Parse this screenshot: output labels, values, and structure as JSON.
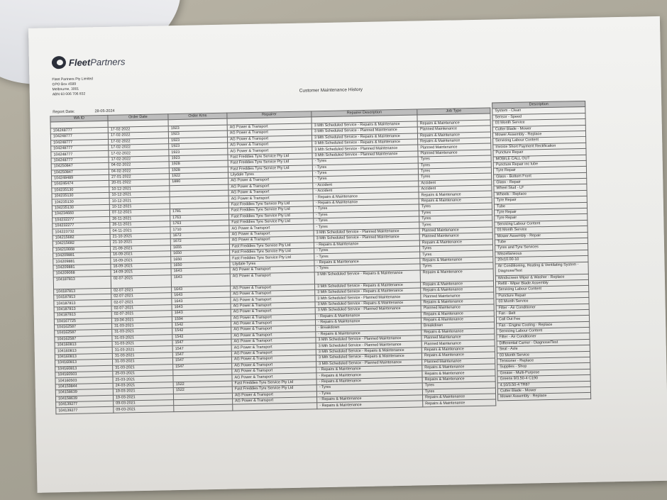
{
  "company": {
    "logo_text": "FleetPartners",
    "address_lines": [
      "Fleet Partners Pty Limited",
      "GPO Box 4599",
      "Melbourne, 3001",
      "ABN 63 006 706 832"
    ]
  },
  "document": {
    "title": "Customer Maintenance History",
    "report_date_label": "Report Date:",
    "report_date": "28-05-2024"
  },
  "table": {
    "headers": [
      "WA ID",
      "Order Date",
      "Order Kms",
      "Repairer",
      "Repairer Description",
      "Job Type",
      "Description"
    ],
    "rows": [
      [
        "",
        "",
        "",
        "",
        "",
        ""
      ],
      [
        "104248777",
        "17-02-2022",
        "1923",
        "AG Power & Transport",
        "3 Mth Scheduled Service - Repairs & Maintenance",
        "Repairs & Maintenance"
      ],
      [
        "104248777",
        "17-02-2022",
        "1923",
        "AG Power & Transport",
        "3 Mth Scheduled Service - Planned Maintenance",
        "Planned Maintenance"
      ],
      [
        "104248777",
        "17-02-2022",
        "1923",
        "AG Power & Transport",
        "3 Mth Scheduled Service - Repairs & Maintenance",
        "Repairs & Maintenance"
      ],
      [
        "104248777",
        "17-02-2022",
        "1923",
        "AG Power & Transport",
        "3 Mth Scheduled Service - Repairs & Maintenance",
        "Repairs & Maintenance"
      ],
      [
        "104248777",
        "17-02-2022",
        "1923",
        "AG Power & Transport",
        "3 Mth Scheduled Service - Planned Maintenance",
        "Planned Maintenance"
      ],
      [
        "104248777",
        "17-02-2022",
        "1923",
        "Fast Freddies Tyre Service Pty Ltd",
        "3 Mth Scheduled Service - Planned Maintenance",
        "Planned Maintenance"
      ],
      [
        "104250847",
        "04-02-2022",
        "1928",
        "Fast Freddies Tyre Service Pty Ltd",
        "- Tyres",
        "Tyres"
      ],
      [
        "104250847",
        "04-02-2022",
        "1928",
        "Fast Freddies Tyre Service Pty Ltd",
        "- Tyres",
        "Tyres"
      ],
      [
        "104248489",
        "27-01-2022",
        "1922",
        "Lilydale Tyres",
        "- Tyres",
        "Tyres"
      ],
      [
        "104246474",
        "20-01-2022",
        "1880",
        "AG Power & Transport",
        "- Tyres",
        "Tyres"
      ],
      [
        "104235130",
        "10-12-2021",
        "",
        "AG Power & Transport",
        "- Accident",
        "Accident"
      ],
      [
        "104235130",
        "10-12-2021",
        "",
        "AG Power & Transport",
        "- Accident",
        "Accident"
      ],
      [
        "104235130",
        "10-12-2021",
        "",
        "AG Power & Transport",
        "- Repairs & Maintenance",
        "Repairs & Maintenance"
      ],
      [
        "104235130",
        "10-12-2021",
        "",
        "Fast Freddies Tyre Service Pty Ltd",
        "- Repairs & Maintenance",
        "Repairs & Maintenance"
      ],
      [
        "104234660",
        "07-12-2021",
        "1781",
        "Fast Freddies Tyre Service Pty Ltd",
        "- Tyres",
        "Tyres"
      ],
      [
        "104232277",
        "26-11-2021",
        "1763",
        "Fast Freddies Tyre Service Pty Ltd",
        "- Tyres",
        "Tyres"
      ],
      [
        "104232277",
        "26-11-2021",
        "1763",
        "Fast Freddies Tyre Service Pty Ltd",
        "- Tyres",
        "Tyres"
      ],
      [
        "104223732",
        "04-11-2021",
        "1710",
        "AG Power & Transport",
        "- Tyres",
        "Tyres"
      ],
      [
        "104215682",
        "21-10-2021",
        "1672",
        "AG Power & Transport",
        "3 Mth Scheduled Service - Planned Maintenance",
        "Planned Maintenance"
      ],
      [
        "104215682",
        "21-10-2021",
        "1672",
        "AG Power & Transport",
        "3 Mth Scheduled Service - Planned Maintenance",
        "Planned Maintenance"
      ],
      [
        "104210668",
        "21-09-2021",
        "1655",
        "Fast Freddies Tyre Service Pty Ltd",
        "- Repairs & Maintenance",
        "Repairs & Maintenance"
      ],
      [
        "104209881",
        "16-09-2021",
        "1650",
        "Fast Freddies Tyre Service Pty Ltd",
        "- Tyres",
        "Tyres"
      ],
      [
        "104209881",
        "16-09-2021",
        "1650",
        "Fast Freddies Tyre Service Pty Ltd",
        "- Tyres",
        "Tyres"
      ],
      [
        "104209881",
        "16-09-2021",
        "1650",
        "Lilydale Tyres",
        "- Repairs & Maintenance",
        "Repairs & Maintenance"
      ],
      [
        "104209068",
        "14-09-2021",
        "1643",
        "AG Power & Transport",
        "- Tyres",
        "Tyres"
      ],
      [
        "104187813",
        "02-07-2021",
        "1643",
        "AG Power & Transport",
        "3 Mth Scheduled Service - Repairs & Maintenance",
        "Repairs & Maintenance"
      ],
      [
        "104187813",
        "02-07-2021",
        "1643",
        "AG Power & Transport",
        "3 Mth Scheduled Service - Repairs & Maintenance",
        "Repairs & Maintenance"
      ],
      [
        "104187813",
        "02-07-2021",
        "1643",
        "AG Power & Transport",
        "3 Mth Scheduled Service - Repairs & Maintenance",
        "Repairs & Maintenance"
      ],
      [
        "104187813",
        "02-07-2021",
        "1643",
        "AG Power & Transport",
        "3 Mth Scheduled Service - Planned Maintenance",
        "Planned Maintenance"
      ],
      [
        "104187813",
        "02-07-2021",
        "1643",
        "AG Power & Transport",
        "3 Mth Scheduled Service - Repairs & Maintenance",
        "Repairs & Maintenance"
      ],
      [
        "104187813",
        "02-07-2021",
        "1643",
        "AG Power & Transport",
        "3 Mth Scheduled Service - Planned Maintenance",
        "Planned Maintenance"
      ],
      [
        "104167725",
        "19-04-2021",
        "1594",
        "AG Power & Transport",
        "- Repairs & Maintenance",
        "Repairs & Maintenance"
      ],
      [
        "104162587",
        "31-03-2021",
        "1542",
        "AG Power & Transport",
        "- Repairs & Maintenance",
        "Repairs & Maintenance"
      ],
      [
        "104162587",
        "31-03-2021",
        "1542",
        "AG Power & Transport",
        "- Breakdown",
        "Breakdown"
      ],
      [
        "104162587",
        "31-03-2021",
        "1542",
        "AG Power & Transport",
        "- Repairs & Maintenance",
        "Repairs & Maintenance"
      ],
      [
        "104160813",
        "31-03-2021",
        "1547",
        "AG Power & Transport",
        "3 Mth Scheduled Service - Planned Maintenance",
        "Planned Maintenance"
      ],
      [
        "104160813",
        "31-03-2021",
        "1547",
        "AG Power & Transport",
        "3 Mth Scheduled Service - Planned Maintenance",
        "Planned Maintenance"
      ],
      [
        "104160813",
        "31-03-2021",
        "1547",
        "AG Power & Transport",
        "3 Mth Scheduled Service - Repairs & Maintenance",
        "Repairs & Maintenance"
      ],
      [
        "104160813",
        "31-03-2021",
        "1547",
        "AG Power & Transport",
        "3 Mth Scheduled Service - Repairs & Maintenance",
        "Repairs & Maintenance"
      ],
      [
        "104160813",
        "31-03-2021",
        "1547",
        "AG Power & Transport",
        "3 Mth Scheduled Service - Planned Maintenance",
        "Planned Maintenance"
      ],
      [
        "104160503",
        "25-03-2021",
        "",
        "AG Power & Transport",
        "- Repairs & Maintenance",
        "Repairs & Maintenance"
      ],
      [
        "104160503",
        "25-03-2021",
        "",
        "AG Power & Transport",
        "- Repairs & Maintenance",
        "Repairs & Maintenance"
      ],
      [
        "104159844",
        "24-03-2021",
        "1522",
        "Fast Freddies Tyre Service Pty Ltd",
        "- Repairs & Maintenance",
        "Repairs & Maintenance"
      ],
      [
        "104158639",
        "19-03-2021",
        "1522",
        "Fast Freddies Tyre Service Pty Ltd",
        "- Tyres",
        "Tyres"
      ],
      [
        "104158639",
        "19-03-2021",
        "",
        "AG Power & Transport",
        "- Tyres",
        "Tyres"
      ],
      [
        "104139277",
        "09-03-2021",
        "",
        "AG Power & Transport",
        "- Repairs & Maintenance",
        "Repairs & Maintenance"
      ],
      [
        "104139277",
        "09-03-2021",
        "",
        "",
        "- Repairs & Maintenance",
        "Repairs & Maintenance"
      ]
    ],
    "descriptions": [
      "System - Clean",
      "Sensor - Speed",
      "03 Month Service",
      "Cutter Blade - Mower",
      "Mower Assembly - Replace",
      "Servicing Labour Content",
      "Invoice Short Payment Rectification",
      "Puncture Repair",
      "MOBILE CALL OUT",
      "Puncture Repair inc tube",
      "Tyre Repair",
      "Glass - Bottom Front",
      "Glass - Repair",
      "Wheel Stud - LF",
      "Wheels - Replace",
      "Tyre Repair",
      "Tube",
      "Tyre Repair",
      "Tyre Repair",
      "Servicing Labour Content",
      "03 Month Service",
      "Mower Assembly - Repair",
      "Tube",
      "Tyres and Tyre Services",
      "Miscellaneous",
      "20x10.00-10",
      "Air Conditioning, Heating & Ventilating System - Diagnose/Test",
      "Windscreen Wiper & Washer - Replace",
      "Refill - Wiper Blade Assembly",
      "Servicing Labour Content",
      "Puncture Repair",
      "03 Month Service",
      "Filter - Air Conditioner",
      "Fan - Belt",
      "Call Out Fee",
      "Fan - Engine Cooling - Replace",
      "Servicing Labour Content",
      "Filter - Air Conditioner",
      "Differential Carrier - Diagnose/Test",
      "Seal - Axle",
      "03 Month Service",
      "Tensioner - Replace",
      "Supplies - Shop",
      "Grease - Multi-Purpose",
      "Greens 9/3.50-4 C190",
      "4.10/3.50-4 TR87",
      "Cutter Blade - Mower",
      "Mower Assembly - Replace"
    ]
  }
}
